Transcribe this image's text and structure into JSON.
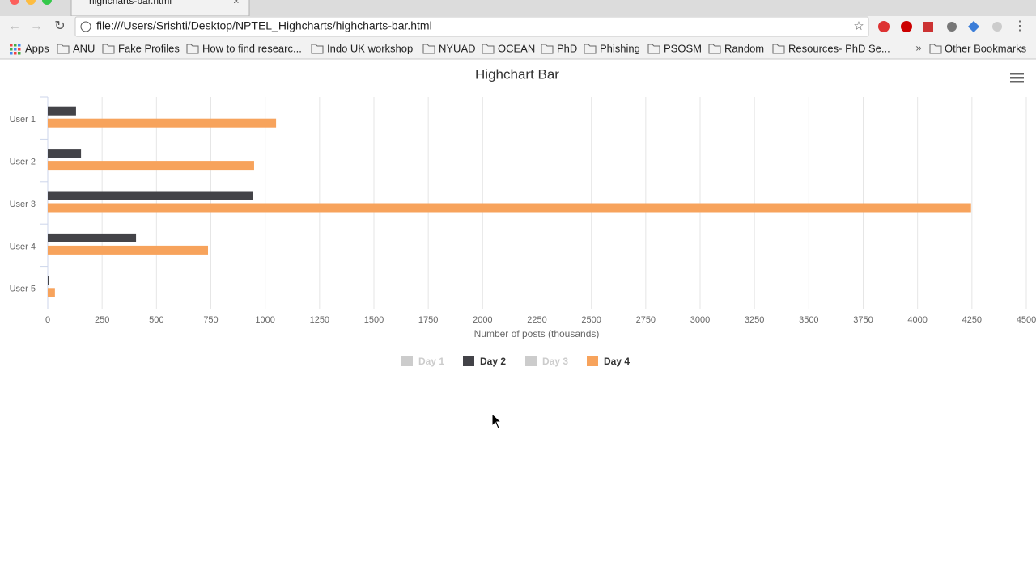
{
  "browser": {
    "tab_title": "highcharts-bar.html",
    "url": "file:///Users/Srishti/Desktop/NPTEL_Highcharts/highcharts-bar.html",
    "bookmarks": [
      "Apps",
      "ANU",
      "Fake Profiles",
      "How to find researc...",
      "Indo UK workshop",
      "NYUAD",
      "OCEAN",
      "PhD",
      "Phishing",
      "PSOSM",
      "Random",
      "Resources- PhD Se..."
    ],
    "other_bookmarks": "Other Bookmarks"
  },
  "chart_data": {
    "type": "bar",
    "title": "Highchart Bar",
    "x_label": "Number of posts (thousands)",
    "categories": [
      "User 1",
      "User 2",
      "User 3",
      "User 4",
      "User 5"
    ],
    "series": [
      {
        "name": "Day 1",
        "color": "#cccccc",
        "visible": false,
        "values": [
          null,
          null,
          null,
          null,
          null
        ]
      },
      {
        "name": "Day 2",
        "color": "#434348",
        "visible": true,
        "values": [
          130,
          153,
          942,
          406,
          2
        ]
      },
      {
        "name": "Day 3",
        "color": "#cccccc",
        "visible": false,
        "values": [
          null,
          null,
          null,
          null,
          null
        ]
      },
      {
        "name": "Day 4",
        "color": "#f7a35c",
        "visible": true,
        "values": [
          1050,
          949,
          4246,
          737,
          33
        ]
      }
    ],
    "xlim": [
      0,
      4500
    ],
    "xticks": [
      0,
      250,
      500,
      750,
      1000,
      1250,
      1500,
      1750,
      2000,
      2250,
      2500,
      2750,
      3000,
      3250,
      3500,
      3750,
      4000,
      4250,
      4500
    ],
    "grid": true
  }
}
